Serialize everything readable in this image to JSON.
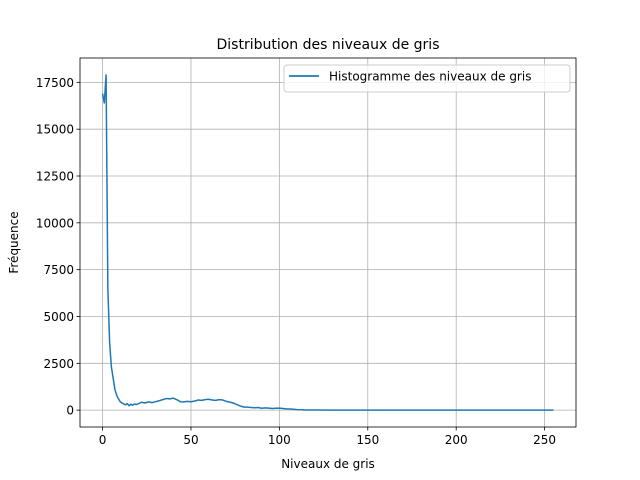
{
  "chart_data": {
    "type": "line",
    "title": "Distribution des niveaux de gris",
    "xlabel": "Niveaux de gris",
    "ylabel": "Fréquence",
    "xlim": [
      -12.75,
      267.75
    ],
    "ylim": [
      -900,
      18800
    ],
    "xticks": [
      0,
      50,
      100,
      150,
      200,
      250
    ],
    "yticks": [
      0,
      2500,
      5000,
      7500,
      10000,
      12500,
      15000,
      17500
    ],
    "grid": true,
    "legend_position": "top-right",
    "series": [
      {
        "name": "Histogramme des niveaux de gris",
        "color": "#1f77b4",
        "x": [
          0,
          1,
          2,
          3,
          4,
          5,
          6,
          7,
          8,
          9,
          10,
          11,
          12,
          13,
          14,
          15,
          16,
          17,
          18,
          19,
          20,
          22,
          24,
          26,
          28,
          30,
          32,
          34,
          36,
          38,
          40,
          42,
          44,
          46,
          48,
          50,
          52,
          54,
          56,
          58,
          60,
          62,
          64,
          66,
          68,
          70,
          72,
          74,
          76,
          78,
          80,
          82,
          84,
          86,
          88,
          90,
          92,
          94,
          96,
          98,
          100,
          102,
          104,
          106,
          108,
          110,
          112,
          115,
          120,
          130,
          140,
          160,
          180,
          200,
          220,
          240,
          255
        ],
        "y": [
          16900,
          16400,
          17900,
          6500,
          3600,
          2300,
          1700,
          1100,
          800,
          600,
          450,
          380,
          330,
          280,
          350,
          230,
          320,
          260,
          330,
          300,
          330,
          420,
          380,
          440,
          400,
          450,
          500,
          560,
          620,
          600,
          640,
          560,
          450,
          440,
          470,
          450,
          480,
          540,
          520,
          560,
          580,
          540,
          520,
          560,
          540,
          470,
          430,
          380,
          300,
          220,
          160,
          160,
          140,
          130,
          140,
          100,
          120,
          110,
          90,
          100,
          110,
          90,
          70,
          60,
          50,
          30,
          20,
          10,
          5,
          3,
          2,
          1,
          1,
          0,
          0,
          0,
          0
        ]
      }
    ]
  }
}
